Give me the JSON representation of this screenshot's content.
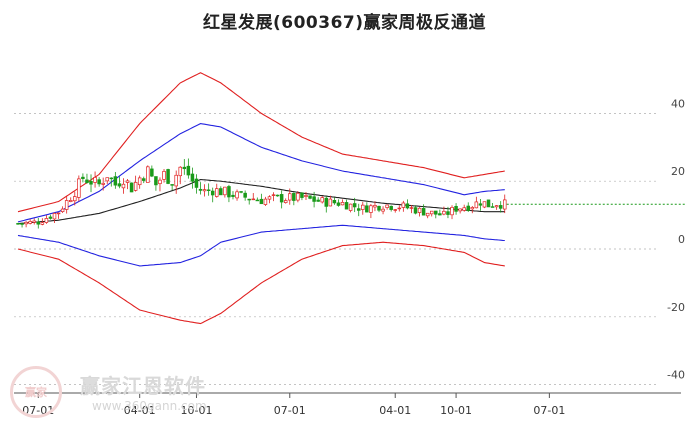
{
  "title": "红星发展(600367)赢家周极反通道",
  "watermark": {
    "text": "赢家江恩软件",
    "url": "www.360gann.com",
    "logo_text": "赢家"
  },
  "colors": {
    "candle_up": "#e02020",
    "candle_down": "#1a9a1a",
    "outer_band": "#e02020",
    "inner_band": "#2323e0",
    "mid_line": "#222222",
    "last_price_line": "#1a9a1a",
    "grid": "#b0b0b0",
    "axis": "#555555"
  },
  "chart_data": {
    "type": "line",
    "subtype": "candlestick with channel bands (weekly)",
    "y_ticks": [
      40,
      20,
      0,
      -20,
      -40
    ],
    "x_tick_labels": [
      "07-01",
      "04-01",
      "10-01",
      "07-01",
      "04-01",
      "10-01",
      "07-01"
    ],
    "ylim": [
      -40,
      52
    ],
    "x_index_range": [
      0,
      160
    ],
    "x_ticks_index": [
      5,
      30,
      44,
      67,
      93,
      108,
      131
    ],
    "grid": "horizontal dashed",
    "last_price": 13.2,
    "series": [
      {
        "name": "",
        "role": "outer_upper",
        "x": [
          0,
          10,
          20,
          30,
          40,
          45,
          50,
          60,
          70,
          80,
          90,
          100,
          110,
          115,
          120
        ],
        "values": [
          11,
          14,
          22,
          37,
          49,
          52,
          49,
          40,
          33,
          28,
          26,
          24,
          21,
          22,
          23
        ]
      },
      {
        "name": "",
        "role": "inner_upper",
        "x": [
          0,
          10,
          20,
          30,
          40,
          45,
          50,
          60,
          70,
          80,
          90,
          100,
          110,
          115,
          120
        ],
        "values": [
          8,
          11,
          17,
          26,
          34,
          37,
          36,
          30,
          26,
          23,
          21,
          19,
          16,
          17,
          17.5
        ]
      },
      {
        "name": "",
        "role": "middle",
        "x": [
          0,
          10,
          20,
          30,
          40,
          45,
          50,
          60,
          70,
          80,
          90,
          100,
          110,
          115,
          120
        ],
        "values": [
          7.5,
          8.5,
          10.5,
          14,
          18,
          20.5,
          20,
          18.5,
          16.5,
          15,
          13.5,
          12.5,
          11.5,
          11,
          11
        ]
      },
      {
        "name": "",
        "role": "inner_lower",
        "x": [
          0,
          10,
          20,
          30,
          40,
          45,
          50,
          60,
          70,
          80,
          90,
          100,
          110,
          115,
          120
        ],
        "values": [
          4,
          2,
          -2,
          -5,
          -4,
          -2,
          2,
          5,
          6,
          7,
          6,
          5,
          4,
          3,
          2.5
        ]
      },
      {
        "name": "",
        "role": "outer_lower",
        "x": [
          0,
          10,
          20,
          30,
          40,
          45,
          50,
          60,
          70,
          80,
          90,
          100,
          110,
          115,
          120
        ],
        "values": [
          0,
          -3,
          -10,
          -18,
          -21,
          -22,
          -19,
          -10,
          -3,
          1,
          2,
          1,
          -1,
          -4,
          -5
        ]
      },
      {
        "name": "",
        "role": "price",
        "x": [
          0,
          5,
          10,
          14,
          16,
          18,
          20,
          22,
          24,
          26,
          28,
          30,
          32,
          34,
          36,
          38,
          40,
          42,
          44,
          46,
          48,
          50,
          55,
          60,
          65,
          70,
          75,
          80,
          85,
          90,
          95,
          100,
          105,
          108,
          110,
          112,
          114,
          116,
          118,
          120
        ],
        "values": [
          7.5,
          8,
          11,
          17,
          21,
          20,
          19,
          22,
          19,
          21,
          18,
          21,
          23,
          19,
          22,
          20,
          24,
          22,
          18,
          17,
          17.5,
          17,
          15.5,
          14.5,
          15,
          15,
          14,
          13.5,
          12,
          13,
          12.5,
          11,
          10,
          12,
          12.5,
          13,
          14,
          13,
          13.5,
          13.2
        ]
      }
    ]
  }
}
